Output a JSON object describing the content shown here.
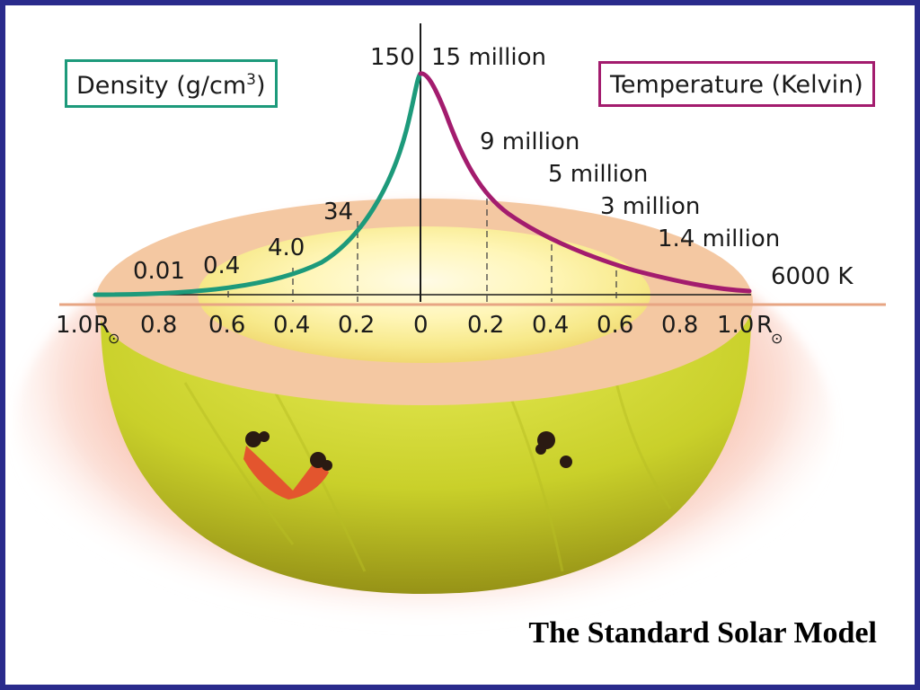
{
  "title": "The Standard Solar Model",
  "density_key": {
    "label": "Density (g/cm",
    "exponent": "3",
    "close": ")"
  },
  "temperature_key": {
    "label": "Temperature (Kelvin)"
  },
  "axis": {
    "left_ticks": [
      "1.0",
      "0.8",
      "0.6",
      "0.4",
      "0.2"
    ],
    "center_tick": "0",
    "right_ticks": [
      "0.2",
      "0.4",
      "0.6",
      "0.8",
      "1.0"
    ],
    "unit_symbol": "R",
    "sun_symbol": "⊙"
  },
  "density_labels": [
    "150",
    "34",
    "4.0",
    "0.4",
    "0.01"
  ],
  "temperature_labels": [
    "15 million",
    "9 million",
    "5 million",
    "3 million",
    "1.4 million",
    "6000 K"
  ],
  "colors": {
    "density_curve": "#1d9a7b",
    "temperature_curve": "#a31c6e",
    "border": "#2a2b8c",
    "sun_body": "#c8d42a"
  },
  "chart_data": {
    "type": "line",
    "xlabel": "",
    "ylabel": "",
    "series": [
      {
        "name": "Density (g/cm3)",
        "x": [
          0,
          0.2,
          0.4,
          0.6,
          1.0
        ],
        "values": [
          150,
          34,
          4.0,
          0.4,
          0.01
        ]
      },
      {
        "name": "Temperature (Kelvin)",
        "x": [
          0,
          0.2,
          0.4,
          0.6,
          0.8,
          1.0
        ],
        "values": [
          15000000,
          9000000,
          5000000,
          3000000,
          1400000,
          6000
        ]
      }
    ]
  }
}
